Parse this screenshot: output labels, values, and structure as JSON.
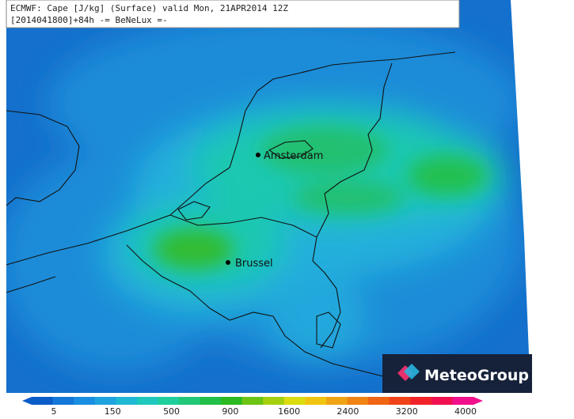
{
  "header": {
    "line1": "ECMWF: Cape [J/kg] (Surface) valid Mon, 21APR2014 12Z",
    "line2": "[2014041800]+84h -= BeNeLux =-"
  },
  "cities": [
    {
      "label": "Amsterdam"
    },
    {
      "label": "Brussel"
    }
  ],
  "logo": {
    "text": "MeteoGroup"
  },
  "colorbar": {
    "colors": [
      "#0a5cc8",
      "#1478d8",
      "#1a8ee0",
      "#1ea4e0",
      "#20b8d4",
      "#1ec8bc",
      "#1ecf9c",
      "#20c878",
      "#22c048",
      "#2cba20",
      "#6cc414",
      "#a4d010",
      "#dcdc10",
      "#f0c410",
      "#f0a414",
      "#f08414",
      "#f06414",
      "#f04418",
      "#f02428",
      "#f01050",
      "#f0108c"
    ],
    "labels": [
      5,
      150,
      500,
      900,
      1600,
      2400,
      3200,
      4000
    ]
  }
}
